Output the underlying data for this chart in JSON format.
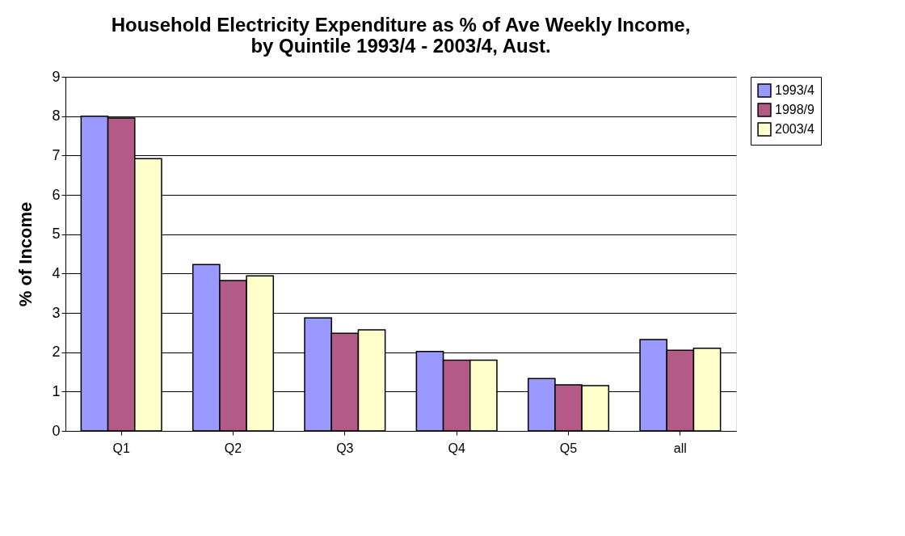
{
  "chart_data": {
    "type": "bar",
    "title": "Household Electricity Expenditure as % of Ave Weekly Income, by Quintile 1993/4 - 2003/4, Aust.",
    "ylabel": "% of Income",
    "categories": [
      "Q1",
      "Q2",
      "Q3",
      "Q4",
      "Q5",
      "all"
    ],
    "series": [
      {
        "name": "1993/4",
        "color": "#9999ff",
        "values": [
          8.0,
          4.23,
          2.87,
          2.02,
          1.33,
          2.32
        ]
      },
      {
        "name": "1998/9",
        "color": "#b35a87",
        "values": [
          7.95,
          3.82,
          2.48,
          1.8,
          1.17,
          2.05
        ]
      },
      {
        "name": "2003/4",
        "color": "#ffffcc",
        "values": [
          6.92,
          3.94,
          2.57,
          1.8,
          1.15,
          2.1
        ]
      }
    ],
    "ylim": [
      0,
      9
    ],
    "yticks": [
      0,
      1,
      2,
      3,
      4,
      5,
      6,
      7,
      8,
      9
    ],
    "grid": "y",
    "legend": "right"
  }
}
